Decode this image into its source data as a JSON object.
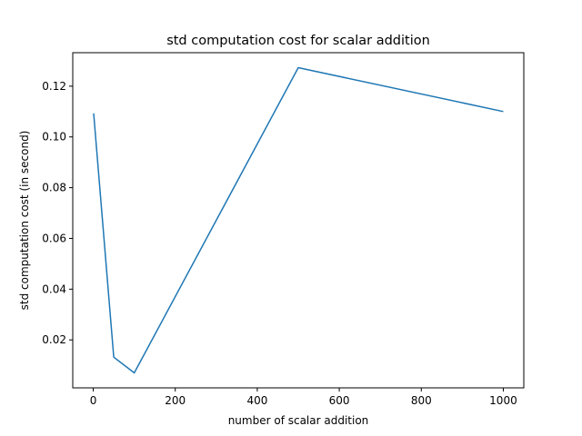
{
  "chart_data": {
    "type": "line",
    "title": "std computation cost for scalar addition",
    "xlabel": "number of scalar addition",
    "ylabel": "std computation cost (in second)",
    "xlim": [
      -50,
      1050
    ],
    "ylim": [
      0.0011,
      0.1332
    ],
    "x_ticks": [
      0,
      200,
      400,
      600,
      800,
      1000
    ],
    "y_ticks": [
      0.02,
      0.04,
      0.06,
      0.08,
      0.1,
      0.12
    ],
    "x_tick_labels": [
      "0",
      "200",
      "400",
      "600",
      "800",
      "1000"
    ],
    "y_tick_labels": [
      "0.02",
      "0.04",
      "0.06",
      "0.08",
      "0.10",
      "0.12"
    ],
    "grid": false,
    "series": [
      {
        "color": "#1f77b4",
        "x": [
          1,
          50,
          100,
          500,
          1000
        ],
        "y": [
          0.1093,
          0.0132,
          0.007,
          0.1273,
          0.11
        ]
      }
    ]
  }
}
